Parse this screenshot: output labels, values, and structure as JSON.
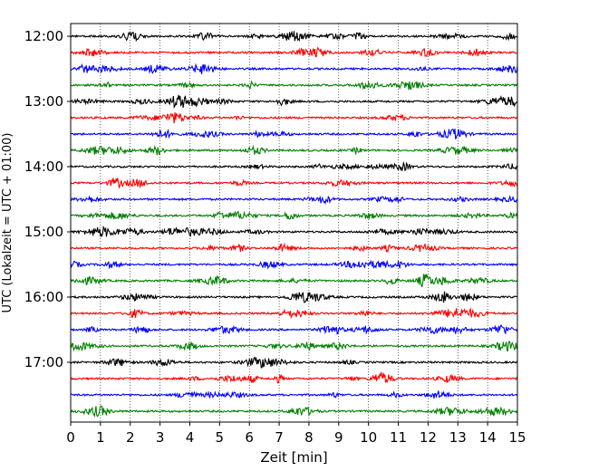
{
  "chart_data": {
    "type": "line",
    "title": "",
    "xlabel": "Zeit  [min]",
    "ylabel": "UTC (Lokalzeit = UTC + 01:00)",
    "xlim": [
      0,
      15
    ],
    "x_ticks": [
      0,
      1,
      2,
      3,
      4,
      5,
      6,
      7,
      8,
      9,
      10,
      11,
      12,
      13,
      14,
      15
    ],
    "x_tick_labels": [
      "0",
      "1",
      "2",
      "3",
      "4",
      "5",
      "6",
      "7",
      "8",
      "9",
      "10",
      "11",
      "12",
      "13",
      "14",
      "15"
    ],
    "y_ticks": [
      "12:00",
      "13:00",
      "14:00",
      "15:00",
      "16:00",
      "17:00"
    ],
    "vertical_grid": true,
    "trace_interval_minutes": 15,
    "trace_colors": [
      "#000000",
      "#ff0000",
      "#0000ff",
      "#008000"
    ],
    "series": [
      {
        "start": "12:00",
        "color": "#000000"
      },
      {
        "start": "12:15",
        "color": "#ff0000"
      },
      {
        "start": "12:30",
        "color": "#0000ff"
      },
      {
        "start": "12:45",
        "color": "#008000"
      },
      {
        "start": "13:00",
        "color": "#000000"
      },
      {
        "start": "13:15",
        "color": "#ff0000"
      },
      {
        "start": "13:30",
        "color": "#0000ff"
      },
      {
        "start": "13:45",
        "color": "#008000"
      },
      {
        "start": "14:00",
        "color": "#000000"
      },
      {
        "start": "14:15",
        "color": "#ff0000"
      },
      {
        "start": "14:30",
        "color": "#0000ff"
      },
      {
        "start": "14:45",
        "color": "#008000"
      },
      {
        "start": "15:00",
        "color": "#000000"
      },
      {
        "start": "15:15",
        "color": "#ff0000"
      },
      {
        "start": "15:30",
        "color": "#0000ff"
      },
      {
        "start": "15:45",
        "color": "#008000"
      },
      {
        "start": "16:00",
        "color": "#000000"
      },
      {
        "start": "16:15",
        "color": "#ff0000"
      },
      {
        "start": "16:30",
        "color": "#0000ff"
      },
      {
        "start": "16:45",
        "color": "#008000"
      },
      {
        "start": "17:00",
        "color": "#000000"
      },
      {
        "start": "17:15",
        "color": "#ff0000"
      },
      {
        "start": "17:30",
        "color": "#0000ff"
      },
      {
        "start": "17:45",
        "color": "#008000"
      }
    ]
  }
}
